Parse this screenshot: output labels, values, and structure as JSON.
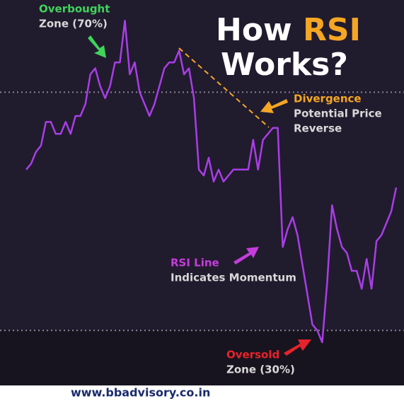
{
  "chart_data": {
    "type": "line",
    "title": {
      "line1": "How",
      "highlight": "RSI",
      "line2": "Works?"
    },
    "series": [
      {
        "name": "RSI Line",
        "color": "#a93ee6",
        "values": [
          57,
          58,
          60,
          61,
          65,
          65,
          63,
          63,
          65,
          63,
          66,
          66,
          68,
          73,
          74,
          71,
          69,
          71,
          75,
          75,
          82,
          73,
          75,
          70,
          68,
          66,
          68,
          71,
          74,
          75,
          75,
          77,
          73,
          74,
          69,
          57,
          56,
          59,
          55,
          57,
          55,
          56,
          57,
          57,
          57,
          57,
          62,
          57,
          62,
          63,
          64,
          64,
          44,
          47,
          49,
          46,
          41,
          36,
          31,
          30,
          28,
          38,
          51,
          47,
          44,
          43,
          40,
          40,
          37,
          42,
          37,
          45,
          46,
          48,
          50,
          54
        ]
      }
    ],
    "ylim": [
      21,
      85
    ],
    "hlines": [
      70,
      30
    ],
    "annotations": [
      {
        "lines": [
          "Overbought",
          "Zone (70%)"
        ],
        "colors": [
          "#3fd45a",
          "#d8d8d8"
        ]
      },
      {
        "lines": [
          "Divergence",
          "Potential Price",
          "Reverse"
        ],
        "colors": [
          "#f5a623",
          "#d8d8d8",
          "#d8d8d8"
        ]
      },
      {
        "lines": [
          "RSI Line",
          "Indicates Momentum"
        ],
        "colors": [
          "#c53ddc",
          "#d8d8d8"
        ]
      },
      {
        "lines": [
          "Oversold",
          "Zone (30%)"
        ],
        "colors": [
          "#e8232b",
          "#d8d8d8"
        ]
      }
    ],
    "footer": "www.bbadvisory.co.in"
  }
}
